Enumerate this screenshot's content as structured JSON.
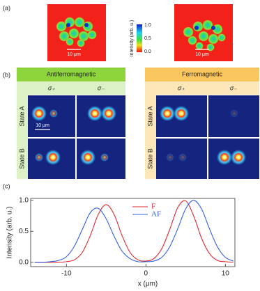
{
  "panel_labels": {
    "a": "(a)",
    "b": "(b)",
    "c": "(c)"
  },
  "panel_a": {
    "colorbar_label": "Intensity (arb. u.)",
    "colorbar_ticks": [
      "1.0",
      "0.5",
      "0.0"
    ],
    "scale_bar": "10 μm"
  },
  "panel_b": {
    "groups": [
      {
        "title": "Antiferromagnetic",
        "columns": [
          "σ₊",
          "σ₋"
        ],
        "rows": [
          "State A",
          "State B"
        ]
      },
      {
        "title": "Ferromagnetic",
        "columns": [
          "σ₊",
          "σ₋"
        ],
        "rows": [
          "State A",
          "State B"
        ]
      }
    ],
    "scale_bar": "10 μm"
  },
  "chart_data": {
    "type": "line",
    "xlabel": "x (μm)",
    "ylabel": "Intensity (arb. u.)",
    "x": [
      -14,
      -13,
      -12,
      -11,
      -10,
      -9,
      -8,
      -7,
      -6,
      -5,
      -4,
      -3,
      -2,
      -1,
      0,
      1,
      2,
      3,
      4,
      5,
      6,
      7,
      8,
      9,
      10,
      11
    ],
    "series": [
      {
        "name": "F",
        "color": "#e5262e",
        "values": [
          0,
          0,
          0,
          0,
          0.01,
          0.04,
          0.16,
          0.43,
          0.77,
          0.93,
          0.77,
          0.43,
          0.16,
          0.04,
          0.02,
          0.06,
          0.22,
          0.53,
          0.88,
          0.99,
          0.75,
          0.39,
          0.14,
          0.03,
          0.01,
          0
        ]
      },
      {
        "name": "AF",
        "color": "#3060e6",
        "values": [
          0,
          0,
          0.01,
          0.03,
          0.09,
          0.26,
          0.53,
          0.8,
          0.87,
          0.7,
          0.42,
          0.18,
          0.06,
          0.01,
          0.01,
          0.02,
          0.08,
          0.25,
          0.54,
          0.86,
          1.0,
          0.86,
          0.54,
          0.25,
          0.08,
          0.02
        ]
      }
    ],
    "xlim": [
      -14.5,
      11.2
    ],
    "ylim": [
      -0.07,
      1.03
    ],
    "xticks": [
      -10,
      0,
      10
    ],
    "yticks": [
      {
        "value": 0,
        "label": "0.0"
      },
      {
        "value": 0.5,
        "label": "0.5"
      },
      {
        "value": 1,
        "label": "1.0"
      }
    ]
  }
}
